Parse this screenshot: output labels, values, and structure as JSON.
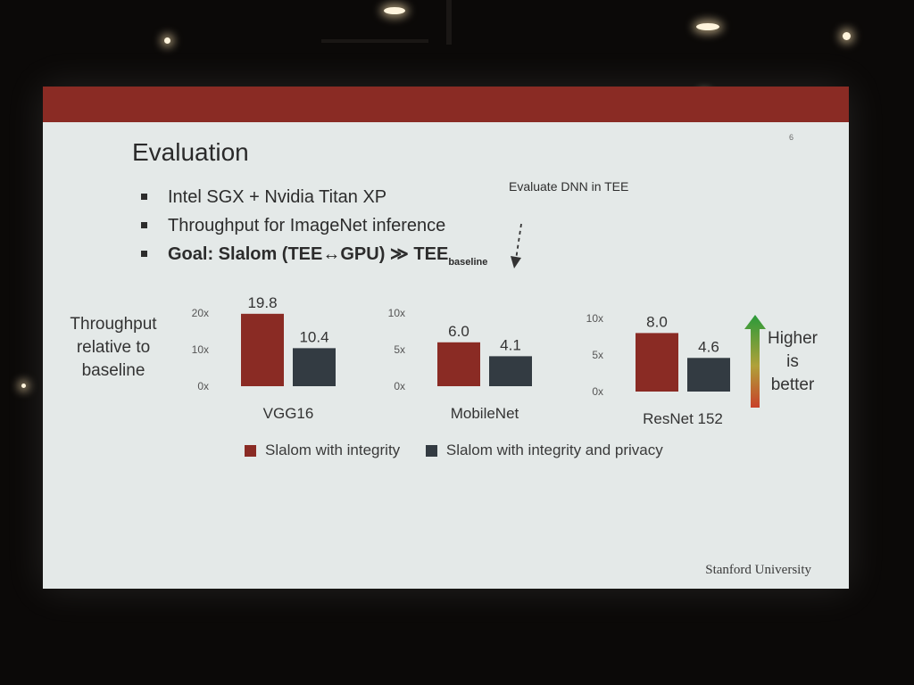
{
  "slide": {
    "title": "Evaluation",
    "slide_number": "6",
    "bullets": [
      {
        "text": "Intel SGX + Nvidia Titan XP"
      },
      {
        "text": "Throughput for ImageNet inference"
      },
      {
        "text": "Goal: Slalom (TEE↔GPU) ≫ TEE",
        "subscript": "baseline"
      }
    ],
    "annotation": "Evaluate DNN in TEE",
    "ylabel_lines": [
      "Throughput",
      "relative to",
      "baseline"
    ],
    "higher_lines": [
      "Higher",
      "is",
      "better"
    ],
    "footer": "Stanford University"
  },
  "colors": {
    "title_bar": "#8a2b24",
    "integrity": "#8a2b24",
    "integrity_privacy": "#333b42",
    "arrow_top": "#2a9a3a",
    "arrow_bottom": "#c8412a"
  },
  "chart_data": [
    {
      "type": "bar",
      "categories": [
        "VGG16"
      ],
      "series": [
        {
          "name": "Slalom with integrity",
          "values": [
            19.8
          ]
        },
        {
          "name": "Slalom with integrity and privacy",
          "values": [
            10.4
          ]
        }
      ],
      "data_labels": [
        "19.8",
        "10.4"
      ],
      "yticks": [
        "0x",
        "10x",
        "20x"
      ],
      "ylim": [
        0,
        20
      ],
      "xlabel": "VGG16"
    },
    {
      "type": "bar",
      "categories": [
        "MobileNet"
      ],
      "series": [
        {
          "name": "Slalom with integrity",
          "values": [
            6.0
          ]
        },
        {
          "name": "Slalom with integrity and privacy",
          "values": [
            4.1
          ]
        }
      ],
      "data_labels": [
        "6.0",
        "4.1"
      ],
      "yticks": [
        "0x",
        "5x",
        "10x"
      ],
      "ylim": [
        0,
        10
      ],
      "xlabel": "MobileNet"
    },
    {
      "type": "bar",
      "categories": [
        "ResNet 152"
      ],
      "series": [
        {
          "name": "Slalom with integrity",
          "values": [
            8.0
          ]
        },
        {
          "name": "Slalom with integrity and privacy",
          "values": [
            4.6
          ]
        }
      ],
      "data_labels": [
        "8.0",
        "4.6"
      ],
      "yticks": [
        "0x",
        "5x",
        "10x"
      ],
      "ylim": [
        0,
        10
      ],
      "xlabel": "ResNet 152"
    }
  ],
  "legend": [
    {
      "label": "Slalom with integrity"
    },
    {
      "label": "Slalom with integrity and privacy"
    }
  ]
}
